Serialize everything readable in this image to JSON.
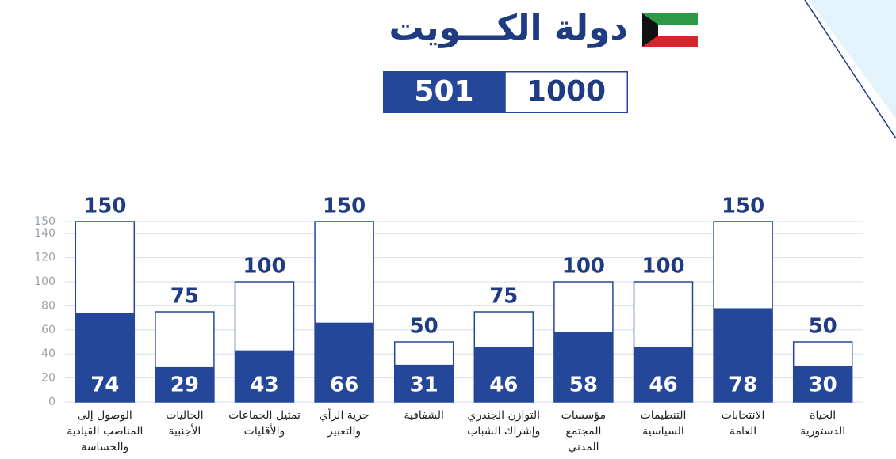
{
  "header": {
    "title": "دولة الكـــويت",
    "score": 501,
    "total": 1000
  },
  "chart_data": {
    "type": "bar",
    "categories": [
      [
        "الوصول إلى",
        "المناصب القيادية",
        "والحساسة"
      ],
      [
        "الجاليات",
        "الأجنبية"
      ],
      [
        "تمثيل الجماعات",
        "والأقليات"
      ],
      [
        "حرية الرأي",
        "والتعبير"
      ],
      [
        "الشفافية"
      ],
      [
        "التوازن الجندري",
        "وإشراك الشباب"
      ],
      [
        "مؤسسات",
        "المجتمع",
        "المدني"
      ],
      [
        "التنظيمات",
        "السياسية"
      ],
      [
        "الانتخابات",
        "العامة"
      ],
      [
        "الحياة",
        "الدستورية"
      ]
    ],
    "series": [
      {
        "color": "#ffffff",
        "values": [
          150,
          75,
          100,
          150,
          50,
          75,
          100,
          100,
          150,
          50
        ]
      },
      {
        "color": "#25479a",
        "values": [
          74,
          29,
          43,
          66,
          31,
          46,
          58,
          46,
          78,
          30
        ]
      }
    ],
    "ylim": [
      0,
      150
    ],
    "yticks": [
      0,
      20,
      40,
      60,
      80,
      100,
      120,
      140,
      150
    ],
    "grid": true
  }
}
